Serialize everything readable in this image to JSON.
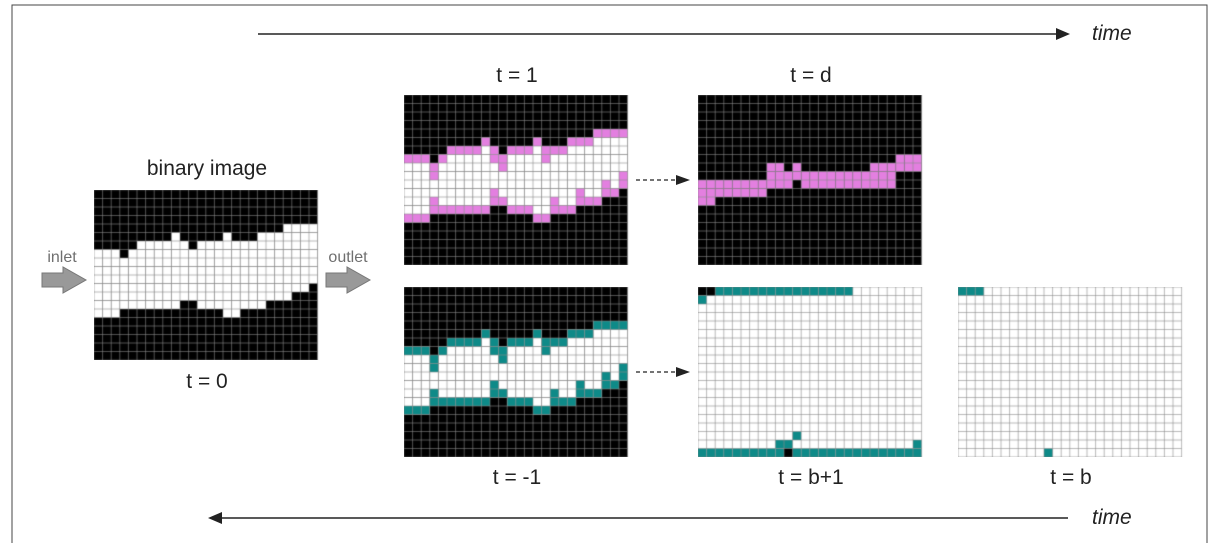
{
  "time_top_label": "time",
  "time_bottom_label": "time",
  "inlet_label": "inlet",
  "outlet_label": "outlet",
  "colors": {
    "solid": "#000000",
    "pore": "#ffffff",
    "grid_line": "#8a8a8a",
    "upper_front": "#e37fe0",
    "lower_front": "#0e8a88",
    "port_arrow": "#999999"
  },
  "panels": [
    {
      "id": "t0",
      "title": "binary image",
      "label": "t = 0",
      "type": "binary",
      "color": "pore"
    },
    {
      "id": "t1",
      "label": "t = 1",
      "type": "front",
      "color": "upper_front"
    },
    {
      "id": "td",
      "label": "t = d",
      "type": "thin",
      "color": "upper_front"
    },
    {
      "id": "tm1",
      "label": "t = -1",
      "type": "front",
      "color": "lower_front"
    },
    {
      "id": "tb1",
      "label": "t = b+1",
      "type": "border",
      "color": "lower_front"
    },
    {
      "id": "tb",
      "label": "t = b",
      "type": "corners",
      "color": "lower_front"
    }
  ]
}
